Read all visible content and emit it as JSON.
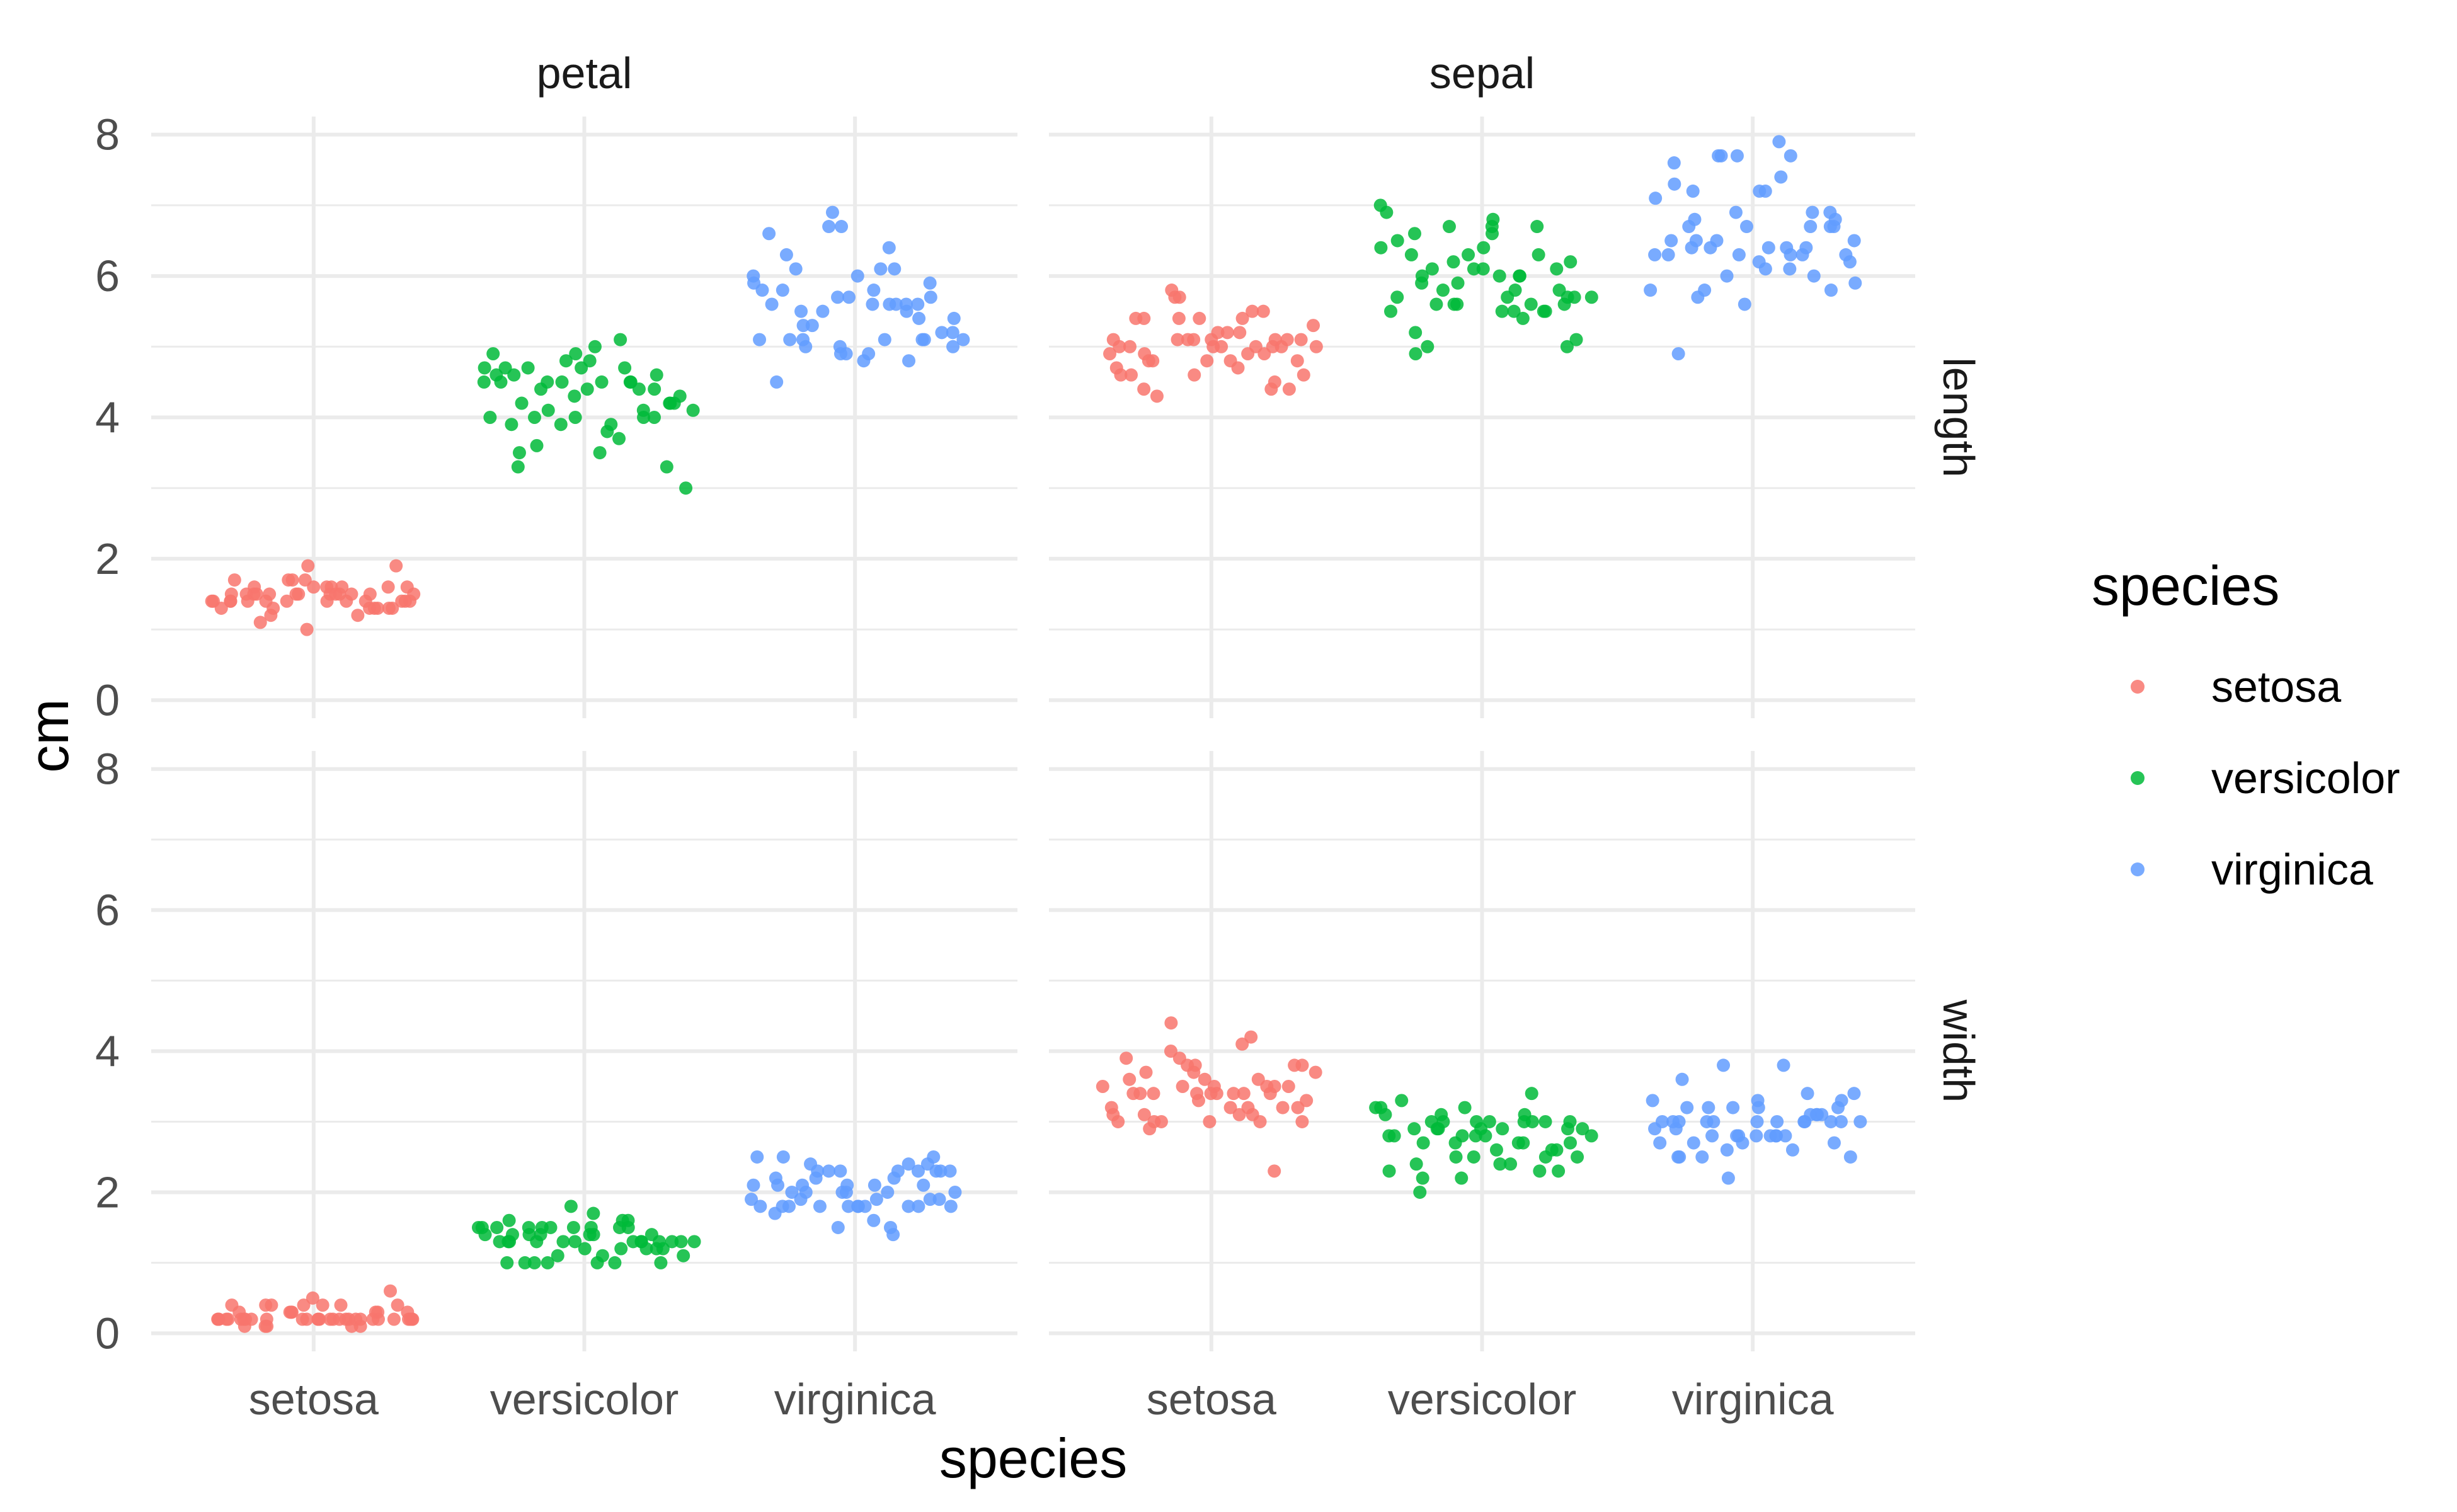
{
  "chart_data": {
    "type": "scatter",
    "facet_columns": [
      "petal",
      "sepal"
    ],
    "facet_rows": [
      "length",
      "width"
    ],
    "categories": [
      "setosa",
      "versicolor",
      "virginica"
    ],
    "xlabel": "species",
    "ylabel": "cm",
    "ylim": [
      0,
      8
    ],
    "y_ticks": [
      "0",
      "2",
      "4",
      "6",
      "8"
    ],
    "grid": true,
    "legend": {
      "title": "species",
      "position": "right",
      "entries": [
        "setosa",
        "versicolor",
        "virginica"
      ]
    },
    "colors": {
      "setosa": "#F8766D",
      "versicolor": "#00BA38",
      "virginica": "#619CFF"
    },
    "jitter_width": 0.4,
    "panels": [
      {
        "column": "petal",
        "row": "length",
        "series": [
          {
            "name": "setosa",
            "values": [
              1.4,
              1.4,
              1.3,
              1.5,
              1.4,
              1.7,
              1.4,
              1.5,
              1.4,
              1.5,
              1.5,
              1.6,
              1.4,
              1.1,
              1.2,
              1.5,
              1.3,
              1.4,
              1.7,
              1.5,
              1.7,
              1.5,
              1.0,
              1.7,
              1.9,
              1.6,
              1.6,
              1.5,
              1.4,
              1.6,
              1.6,
              1.5,
              1.5,
              1.4,
              1.5,
              1.2,
              1.3,
              1.4,
              1.3,
              1.5,
              1.3,
              1.3,
              1.3,
              1.6,
              1.9,
              1.4,
              1.6,
              1.4,
              1.5,
              1.4
            ]
          },
          {
            "name": "versicolor",
            "values": [
              4.7,
              4.5,
              4.9,
              4.0,
              4.6,
              4.5,
              4.7,
              3.3,
              4.6,
              3.9,
              3.5,
              4.2,
              4.0,
              4.7,
              3.6,
              4.4,
              4.5,
              4.1,
              4.5,
              3.9,
              4.8,
              4.0,
              4.9,
              4.7,
              4.3,
              4.4,
              4.8,
              5.0,
              4.5,
              3.5,
              3.8,
              3.7,
              3.9,
              5.1,
              4.5,
              4.5,
              4.7,
              4.4,
              4.1,
              4.0,
              4.4,
              4.6,
              4.0,
              3.3,
              4.2,
              4.2,
              4.2,
              4.3,
              3.0,
              4.1
            ]
          },
          {
            "name": "virginica",
            "values": [
              6.0,
              5.1,
              5.9,
              5.6,
              5.8,
              6.6,
              4.5,
              6.3,
              5.8,
              6.1,
              5.1,
              5.3,
              5.5,
              5.0,
              5.1,
              5.3,
              5.5,
              6.7,
              6.9,
              5.0,
              5.7,
              4.9,
              6.7,
              4.9,
              5.7,
              6.0,
              4.8,
              4.9,
              5.6,
              5.8,
              6.1,
              6.4,
              5.6,
              5.1,
              5.6,
              6.1,
              5.6,
              5.5,
              4.8,
              5.4,
              5.6,
              5.1,
              5.1,
              5.9,
              5.7,
              5.2,
              5.0,
              5.2,
              5.4,
              5.1
            ]
          }
        ]
      },
      {
        "column": "sepal",
        "row": "length",
        "series": [
          {
            "name": "setosa",
            "values": [
              5.1,
              4.9,
              4.7,
              4.6,
              5.0,
              5.4,
              4.6,
              5.0,
              4.4,
              4.9,
              5.4,
              4.8,
              4.8,
              4.3,
              5.8,
              5.7,
              5.4,
              5.1,
              5.7,
              5.1,
              5.4,
              5.1,
              4.6,
              5.1,
              4.8,
              5.0,
              5.0,
              5.2,
              5.2,
              4.7,
              4.8,
              5.4,
              5.2,
              5.5,
              4.9,
              5.0,
              5.5,
              4.9,
              4.4,
              5.1,
              5.0,
              4.5,
              4.4,
              5.0,
              5.1,
              4.8,
              5.1,
              4.6,
              5.3,
              5.0
            ]
          },
          {
            "name": "versicolor",
            "values": [
              7.0,
              6.4,
              6.9,
              5.5,
              6.5,
              5.7,
              6.3,
              4.9,
              6.6,
              5.2,
              5.0,
              5.9,
              6.0,
              6.1,
              5.6,
              6.7,
              5.6,
              5.8,
              6.2,
              5.6,
              5.9,
              6.1,
              6.3,
              6.1,
              6.4,
              6.6,
              6.8,
              6.7,
              6.0,
              5.7,
              5.5,
              5.5,
              5.8,
              6.0,
              5.4,
              6.0,
              6.7,
              6.3,
              5.6,
              5.5,
              5.5,
              6.1,
              5.8,
              5.0,
              5.6,
              5.7,
              5.7,
              6.2,
              5.1,
              5.7
            ]
          },
          {
            "name": "virginica",
            "values": [
              6.3,
              5.8,
              7.1,
              6.3,
              6.5,
              7.6,
              4.9,
              7.3,
              6.7,
              7.2,
              6.5,
              6.4,
              6.8,
              5.7,
              5.8,
              6.4,
              6.5,
              7.7,
              7.7,
              6.0,
              6.9,
              5.6,
              7.7,
              6.3,
              6.7,
              7.2,
              6.2,
              6.1,
              6.4,
              7.2,
              7.4,
              7.9,
              6.4,
              6.3,
              6.1,
              7.7,
              6.3,
              6.4,
              6.0,
              6.9,
              6.7,
              6.9,
              5.8,
              6.8,
              6.7,
              6.7,
              6.3,
              6.5,
              6.2,
              5.9
            ]
          }
        ]
      },
      {
        "column": "petal",
        "row": "width",
        "series": [
          {
            "name": "setosa",
            "values": [
              0.2,
              0.2,
              0.2,
              0.2,
              0.2,
              0.4,
              0.3,
              0.2,
              0.2,
              0.1,
              0.2,
              0.2,
              0.1,
              0.1,
              0.2,
              0.4,
              0.4,
              0.3,
              0.3,
              0.3,
              0.2,
              0.4,
              0.2,
              0.5,
              0.2,
              0.2,
              0.4,
              0.2,
              0.2,
              0.2,
              0.2,
              0.4,
              0.1,
              0.2,
              0.2,
              0.2,
              0.2,
              0.1,
              0.2,
              0.2,
              0.3,
              0.3,
              0.2,
              0.6,
              0.4,
              0.3,
              0.2,
              0.2,
              0.2,
              0.2
            ]
          },
          {
            "name": "versicolor",
            "values": [
              1.4,
              1.5,
              1.5,
              1.3,
              1.5,
              1.3,
              1.6,
              1.0,
              1.3,
              1.4,
              1.0,
              1.5,
              1.0,
              1.4,
              1.3,
              1.4,
              1.5,
              1.0,
              1.5,
              1.1,
              1.8,
              1.3,
              1.5,
              1.2,
              1.3,
              1.4,
              1.4,
              1.7,
              1.5,
              1.0,
              1.1,
              1.0,
              1.2,
              1.6,
              1.5,
              1.6,
              1.5,
              1.3,
              1.3,
              1.3,
              1.2,
              1.4,
              1.2,
              1.0,
              1.3,
              1.2,
              1.3,
              1.3,
              1.1,
              1.3
            ]
          },
          {
            "name": "virginica",
            "values": [
              2.5,
              1.9,
              2.1,
              1.8,
              2.2,
              2.1,
              1.7,
              1.8,
              1.8,
              2.5,
              2.0,
              1.9,
              2.1,
              2.0,
              2.4,
              2.3,
              1.8,
              2.2,
              2.3,
              1.5,
              2.3,
              2.0,
              2.0,
              1.8,
              2.1,
              1.8,
              1.8,
              1.8,
              2.1,
              1.6,
              1.9,
              2.0,
              2.2,
              1.5,
              1.4,
              2.3,
              2.4,
              1.8,
              1.8,
              2.1,
              2.4,
              2.3,
              1.9,
              2.3,
              2.5,
              2.3,
              1.9,
              2.0,
              2.3,
              1.8
            ]
          }
        ]
      },
      {
        "column": "sepal",
        "row": "width",
        "series": [
          {
            "name": "setosa",
            "values": [
              3.5,
              3.0,
              3.2,
              3.1,
              3.6,
              3.9,
              3.4,
              3.4,
              2.9,
              3.1,
              3.7,
              3.4,
              3.0,
              3.0,
              4.0,
              4.4,
              3.9,
              3.5,
              3.8,
              3.8,
              3.4,
              3.7,
              3.6,
              3.3,
              3.4,
              3.0,
              3.4,
              3.5,
              3.4,
              3.2,
              3.1,
              3.4,
              4.1,
              4.2,
              3.1,
              3.2,
              3.5,
              3.6,
              3.0,
              3.4,
              3.5,
              2.3,
              3.2,
              3.5,
              3.8,
              3.0,
              3.8,
              3.2,
              3.7,
              3.3
            ]
          },
          {
            "name": "versicolor",
            "values": [
              3.2,
              3.2,
              3.1,
              2.3,
              2.8,
              2.8,
              3.3,
              2.4,
              2.9,
              2.7,
              2.0,
              3.0,
              2.2,
              2.9,
              2.9,
              3.1,
              3.0,
              2.7,
              2.2,
              2.5,
              3.2,
              2.8,
              2.5,
              2.8,
              2.9,
              3.0,
              2.8,
              3.0,
              2.9,
              2.6,
              2.4,
              2.4,
              2.7,
              2.7,
              3.0,
              3.4,
              3.1,
              2.3,
              3.0,
              2.5,
              2.6,
              3.0,
              2.6,
              2.3,
              2.7,
              3.0,
              2.9,
              2.9,
              2.5,
              2.8
            ]
          },
          {
            "name": "virginica",
            "values": [
              3.3,
              2.7,
              3.0,
              2.9,
              3.0,
              3.0,
              2.5,
              2.9,
              2.5,
              3.6,
              3.2,
              2.7,
              3.0,
              2.5,
              2.8,
              3.2,
              3.0,
              3.8,
              2.6,
              2.2,
              3.2,
              2.8,
              2.8,
              2.7,
              3.3,
              3.2,
              2.8,
              3.0,
              2.8,
              3.0,
              2.8,
              3.8,
              2.8,
              2.8,
              2.6,
              3.0,
              3.4,
              3.1,
              3.0,
              3.1,
              3.1,
              3.1,
              2.7,
              3.2,
              3.3,
              3.0,
              2.5,
              3.0,
              3.4,
              3.0
            ]
          }
        ]
      }
    ]
  }
}
